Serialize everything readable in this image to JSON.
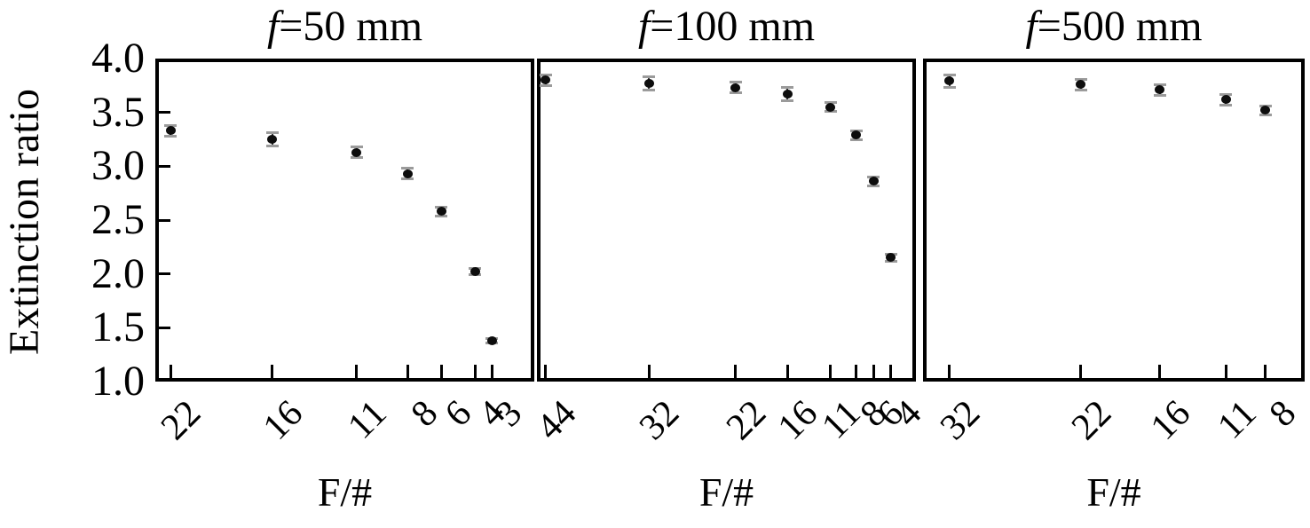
{
  "figure_title": "",
  "colors": {
    "stroke": "#000000",
    "marker": "#0d0d0d",
    "error_cap": "#9b9b9b",
    "background": "#ffffff"
  },
  "chart_data": {
    "type": "scatter",
    "ylabel": "Extinction ratio",
    "ylim": [
      1.0,
      4.0
    ],
    "yticks": [
      "4.0",
      "3.5",
      "3.0",
      "2.5",
      "2.0",
      "1.5",
      "1.0"
    ],
    "grid": "off",
    "legend": "none",
    "marker_style": "filled black circle with gray-capped vertical error bars",
    "x_axis_note": "F-number, linear scale, decreasing from left to right",
    "panels": [
      {
        "title": "f=50 mm",
        "xlabel": "F/#",
        "xlim_left": 22.9,
        "xlim_right": 0.5,
        "points": [
          {
            "x": 22,
            "label": "22",
            "y": 3.33,
            "err": 0.05
          },
          {
            "x": 16,
            "label": "16",
            "y": 3.25,
            "err": 0.06
          },
          {
            "x": 11,
            "label": "11",
            "y": 3.13,
            "err": 0.05
          },
          {
            "x": 8,
            "label": "8",
            "y": 2.93,
            "err": 0.05
          },
          {
            "x": 6,
            "label": "6",
            "y": 2.58,
            "err": 0.04
          },
          {
            "x": 4,
            "label": "4",
            "y": 2.02,
            "err": 0.03
          },
          {
            "x": 3,
            "label": "3",
            "y": 1.38,
            "err": 0.02
          }
        ]
      },
      {
        "title": "f=100 mm",
        "xlabel": "F/#",
        "xlim_left": 45.0,
        "xlim_right": 1.1,
        "points": [
          {
            "x": 44,
            "label": "44",
            "y": 3.8,
            "err": 0.05
          },
          {
            "x": 32,
            "label": "32",
            "y": 3.77,
            "err": 0.06
          },
          {
            "x": 22,
            "label": "22",
            "y": 3.73,
            "err": 0.05
          },
          {
            "x": 16,
            "label": "16",
            "y": 3.67,
            "err": 0.06
          },
          {
            "x": 11,
            "label": "11",
            "y": 3.55,
            "err": 0.04
          },
          {
            "x": 8,
            "label": "8",
            "y": 3.29,
            "err": 0.04
          },
          {
            "x": 6,
            "label": "6",
            "y": 2.86,
            "err": 0.04
          },
          {
            "x": 4,
            "label": "4",
            "y": 2.15,
            "err": 0.03
          }
        ]
      },
      {
        "title": "f=500 mm",
        "xlabel": "F/#",
        "xlim_left": 34.0,
        "xlim_right": 5.0,
        "points": [
          {
            "x": 32,
            "label": "32",
            "y": 3.79,
            "err": 0.06
          },
          {
            "x": 22,
            "label": "22",
            "y": 3.76,
            "err": 0.05
          },
          {
            "x": 16,
            "label": "16",
            "y": 3.71,
            "err": 0.05
          },
          {
            "x": 11,
            "label": "11",
            "y": 3.62,
            "err": 0.05
          },
          {
            "x": 8,
            "label": "8",
            "y": 3.52,
            "err": 0.04
          }
        ]
      }
    ]
  }
}
